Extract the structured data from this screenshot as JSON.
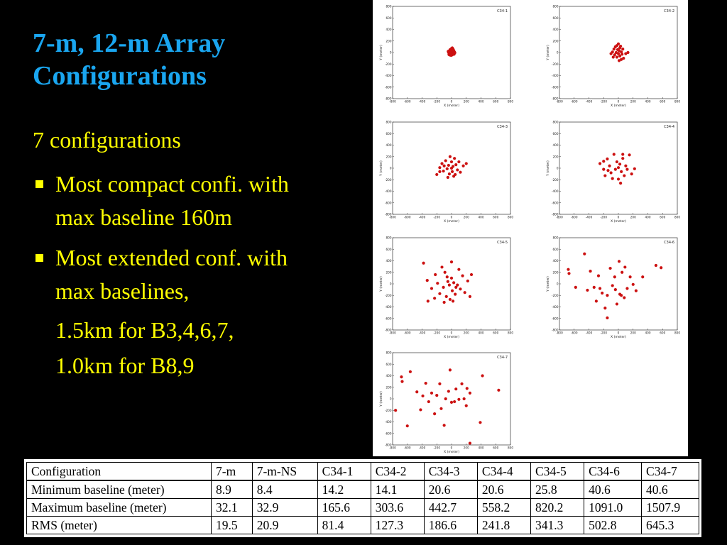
{
  "title": [
    "7-m, 12-m Array",
    "Configurations"
  ],
  "intro": "7 configurations",
  "bullets": [
    {
      "lines": [
        "Most compact confi. with",
        "max baseline 160m"
      ]
    },
    {
      "lines": [
        "Most extended conf. with",
        "max baselines,"
      ]
    }
  ],
  "sublines": [
    "1.5km for B3,4,6,7,",
    "1.0km for B8,9"
  ],
  "colors": {
    "title": "#1aa6f0",
    "text": "#ffff00",
    "point": "#cc1111",
    "background": "#000000"
  },
  "chart_data": {
    "type": "scatter",
    "xlabel": "X (meter)",
    "ylabel": "Y (meter)",
    "xlim": [
      -800,
      800
    ],
    "ylim": [
      -800,
      800
    ],
    "xticks": [
      -800,
      -600,
      -400,
      -200,
      0,
      200,
      400,
      600,
      800
    ],
    "yticks": [
      -800,
      -600,
      -400,
      -200,
      0,
      200,
      400,
      600,
      800
    ],
    "panels": [
      {
        "name": "C34-1",
        "points": [
          [
            -40,
            0
          ],
          [
            -30,
            30
          ],
          [
            -25,
            -20
          ],
          [
            -20,
            50
          ],
          [
            -15,
            10
          ],
          [
            -10,
            -30
          ],
          [
            -5,
            60
          ],
          [
            0,
            20
          ],
          [
            0,
            -10
          ],
          [
            5,
            40
          ],
          [
            10,
            -40
          ],
          [
            15,
            5
          ],
          [
            20,
            60
          ],
          [
            25,
            -15
          ],
          [
            30,
            30
          ],
          [
            35,
            -30
          ],
          [
            40,
            10
          ],
          [
            -35,
            -35
          ],
          [
            -45,
            20
          ],
          [
            10,
            80
          ],
          [
            -20,
            -45
          ],
          [
            45,
            -5
          ],
          [
            25,
            45
          ],
          [
            -5,
            -50
          ],
          [
            0,
            70
          ]
        ]
      },
      {
        "name": "C34-2",
        "points": [
          [
            -80,
            10
          ],
          [
            -60,
            60
          ],
          [
            -50,
            -40
          ],
          [
            -40,
            100
          ],
          [
            -30,
            0
          ],
          [
            -20,
            -80
          ],
          [
            -10,
            50
          ],
          [
            0,
            150
          ],
          [
            0,
            -20
          ],
          [
            10,
            30
          ],
          [
            20,
            -60
          ],
          [
            30,
            110
          ],
          [
            40,
            10
          ],
          [
            50,
            -30
          ],
          [
            60,
            60
          ],
          [
            70,
            -100
          ],
          [
            100,
            -20
          ],
          [
            130,
            0
          ],
          [
            -70,
            -80
          ],
          [
            -20,
            120
          ],
          [
            20,
            80
          ],
          [
            -100,
            -20
          ],
          [
            40,
            -120
          ],
          [
            10,
            -140
          ]
        ]
      },
      {
        "name": "C34-3",
        "points": [
          [
            -200,
            -110
          ],
          [
            -160,
            10
          ],
          [
            -130,
            80
          ],
          [
            -110,
            -50
          ],
          [
            -80,
            130
          ],
          [
            -60,
            -10
          ],
          [
            -40,
            50
          ],
          [
            -30,
            -100
          ],
          [
            -20,
            200
          ],
          [
            0,
            0
          ],
          [
            0,
            110
          ],
          [
            10,
            -60
          ],
          [
            20,
            30
          ],
          [
            40,
            170
          ],
          [
            50,
            -110
          ],
          [
            60,
            60
          ],
          [
            80,
            -30
          ],
          [
            100,
            110
          ],
          [
            120,
            -70
          ],
          [
            160,
            40
          ],
          [
            -100,
            40
          ],
          [
            -50,
            -160
          ],
          [
            30,
            -140
          ],
          [
            200,
            80
          ],
          [
            -160,
            -60
          ]
        ]
      },
      {
        "name": "C34-4",
        "points": [
          [
            -250,
            80
          ],
          [
            -200,
            -20
          ],
          [
            -180,
            -130
          ],
          [
            -150,
            160
          ],
          [
            -120,
            40
          ],
          [
            -100,
            -80
          ],
          [
            -60,
            240
          ],
          [
            -40,
            -20
          ],
          [
            -20,
            110
          ],
          [
            0,
            -190
          ],
          [
            0,
            10
          ],
          [
            20,
            70
          ],
          [
            40,
            -60
          ],
          [
            60,
            170
          ],
          [
            80,
            -130
          ],
          [
            100,
            40
          ],
          [
            120,
            -20
          ],
          [
            150,
            230
          ],
          [
            180,
            -100
          ],
          [
            220,
            -10
          ],
          [
            -80,
            -180
          ],
          [
            30,
            -260
          ],
          [
            -140,
            -40
          ],
          [
            60,
            240
          ],
          [
            -200,
            120
          ]
        ]
      },
      {
        "name": "C34-5",
        "points": [
          [
            -380,
            360
          ],
          [
            -330,
            60
          ],
          [
            -320,
            -300
          ],
          [
            -270,
            -80
          ],
          [
            -220,
            160
          ],
          [
            -190,
            10
          ],
          [
            -160,
            -170
          ],
          [
            -130,
            290
          ],
          [
            -110,
            -60
          ],
          [
            -90,
            200
          ],
          [
            -70,
            -220
          ],
          [
            -50,
            40
          ],
          [
            -30,
            -20
          ],
          [
            0,
            380
          ],
          [
            0,
            100
          ],
          [
            10,
            -120
          ],
          [
            30,
            20
          ],
          [
            50,
            -180
          ],
          [
            80,
            -20
          ],
          [
            100,
            250
          ],
          [
            120,
            -90
          ],
          [
            150,
            140
          ],
          [
            180,
            -150
          ],
          [
            220,
            50
          ],
          [
            250,
            -220
          ],
          [
            270,
            160
          ],
          [
            -20,
            -270
          ],
          [
            -230,
            -250
          ],
          [
            -60,
            120
          ],
          [
            -100,
            -320
          ],
          [
            60,
            -60
          ],
          [
            20,
            -300
          ]
        ]
      },
      {
        "name": "C34-6",
        "points": [
          [
            -680,
            250
          ],
          [
            -670,
            180
          ],
          [
            -580,
            -60
          ],
          [
            -460,
            520
          ],
          [
            -420,
            -110
          ],
          [
            -380,
            220
          ],
          [
            -330,
            -60
          ],
          [
            -300,
            -300
          ],
          [
            -270,
            140
          ],
          [
            -220,
            -160
          ],
          [
            -180,
            -420
          ],
          [
            -150,
            -200
          ],
          [
            -110,
            270
          ],
          [
            -80,
            -30
          ],
          [
            -50,
            120
          ],
          [
            -20,
            -350
          ],
          [
            10,
            390
          ],
          [
            20,
            -180
          ],
          [
            50,
            200
          ],
          [
            80,
            -240
          ],
          [
            120,
            -80
          ],
          [
            160,
            120
          ],
          [
            200,
            -10
          ],
          [
            240,
            -120
          ],
          [
            330,
            120
          ],
          [
            510,
            320
          ],
          [
            580,
            280
          ],
          [
            -40,
            -100
          ],
          [
            90,
            290
          ],
          [
            -250,
            -80
          ],
          [
            40,
            -200
          ],
          [
            -150,
            -590
          ]
        ]
      },
      {
        "name": "C34-7",
        "points": [
          [
            -760,
            -200
          ],
          [
            -680,
            380
          ],
          [
            -670,
            300
          ],
          [
            -600,
            -470
          ],
          [
            -560,
            470
          ],
          [
            -470,
            120
          ],
          [
            -420,
            -190
          ],
          [
            -390,
            50
          ],
          [
            -350,
            270
          ],
          [
            -310,
            -50
          ],
          [
            -270,
            100
          ],
          [
            -230,
            -260
          ],
          [
            -200,
            60
          ],
          [
            -160,
            260
          ],
          [
            -140,
            -170
          ],
          [
            -100,
            -460
          ],
          [
            -80,
            0
          ],
          [
            -40,
            130
          ],
          [
            -20,
            500
          ],
          [
            0,
            -60
          ],
          [
            40,
            -50
          ],
          [
            60,
            170
          ],
          [
            100,
            -10
          ],
          [
            140,
            260
          ],
          [
            170,
            0
          ],
          [
            200,
            -120
          ],
          [
            210,
            180
          ],
          [
            250,
            100
          ],
          [
            390,
            -410
          ],
          [
            420,
            400
          ],
          [
            640,
            150
          ],
          [
            250,
            -770
          ]
        ]
      }
    ]
  },
  "table": {
    "headers": [
      "Configuration",
      "7-m",
      "7-m-NS",
      "C34-1",
      "C34-2",
      "C34-3",
      "C34-4",
      "C34-5",
      "C34-6",
      "C34-7"
    ],
    "rows": [
      [
        "Minimum baseline (meter)",
        "8.9",
        "8.4",
        "14.2",
        "14.1",
        "20.6",
        "20.6",
        "25.8",
        "40.6",
        "40.6"
      ],
      [
        "Maximum baseline (meter)",
        "32.1",
        "32.9",
        "165.6",
        "303.6",
        "442.7",
        "558.2",
        "820.2",
        "1091.0",
        "1507.9"
      ],
      [
        "RMS (meter)",
        "19.5",
        "20.9",
        "81.4",
        "127.3",
        "186.6",
        "241.8",
        "341.3",
        "502.8",
        "645.3"
      ]
    ]
  }
}
